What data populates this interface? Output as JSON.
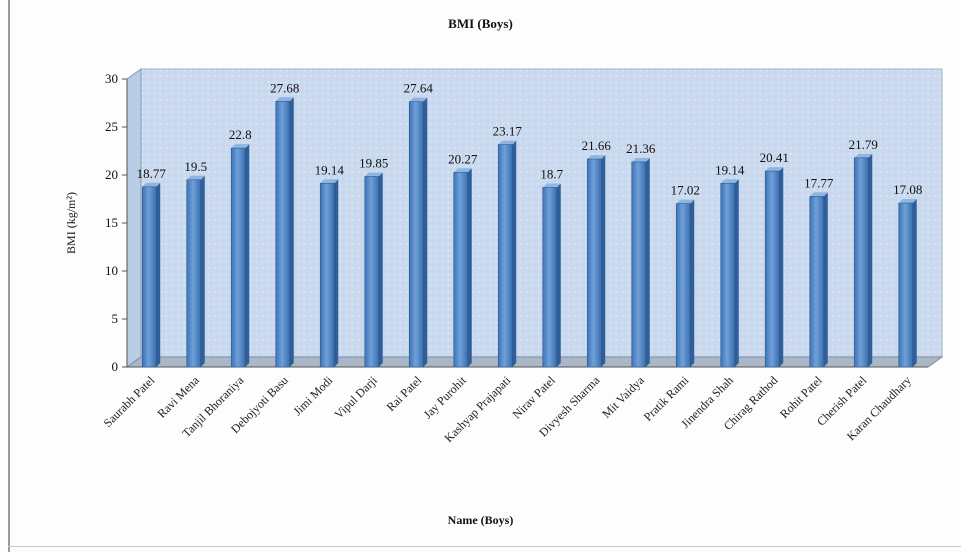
{
  "chart_data": {
    "type": "bar",
    "title": "BMI (Boys)",
    "xlabel": "Name (Boys)",
    "ylabel": "BMI (kg/m²)",
    "ylim": [
      0,
      30
    ],
    "yticks": [
      0,
      5,
      10,
      15,
      20,
      25,
      30
    ],
    "grid": false,
    "categories": [
      "Saurabh Patel",
      "Ravi Mena",
      "Tanjil Bhoraniya",
      "Debojyoti Basu",
      "Jimi Modi",
      "Vipul Darji",
      "Rai Patel",
      "Jay Purohit",
      "Kashyap Prajapati",
      "Nirav Patel",
      "Divyesh Sharma",
      "Mit Vaidya",
      "Pratik Rami",
      "Jinendra Shah",
      "Chirag Rathod",
      "Rohit Patel",
      "Cherish Patel",
      "Karan Chaudhary"
    ],
    "values": [
      18.77,
      19.5,
      22.8,
      27.68,
      19.14,
      19.85,
      27.64,
      20.27,
      23.17,
      18.7,
      21.66,
      21.36,
      17.02,
      19.14,
      20.41,
      17.77,
      21.79,
      17.08
    ],
    "value_labels": [
      "18.77",
      "19.5",
      "22.8",
      "27.68",
      "19.14",
      "19.85",
      "27.64",
      "20.27",
      "23.17",
      "18.7",
      "21.66",
      "21.36",
      "17.02",
      "19.14",
      "20.41",
      "17.77",
      "21.79",
      "17.08"
    ],
    "colors": {
      "bar": "#4f86c6",
      "bar_side": "#2f5f98",
      "bar_top": "#8fb5e0",
      "wall": "#c7daf0",
      "floor": "#a9b7c8"
    }
  }
}
